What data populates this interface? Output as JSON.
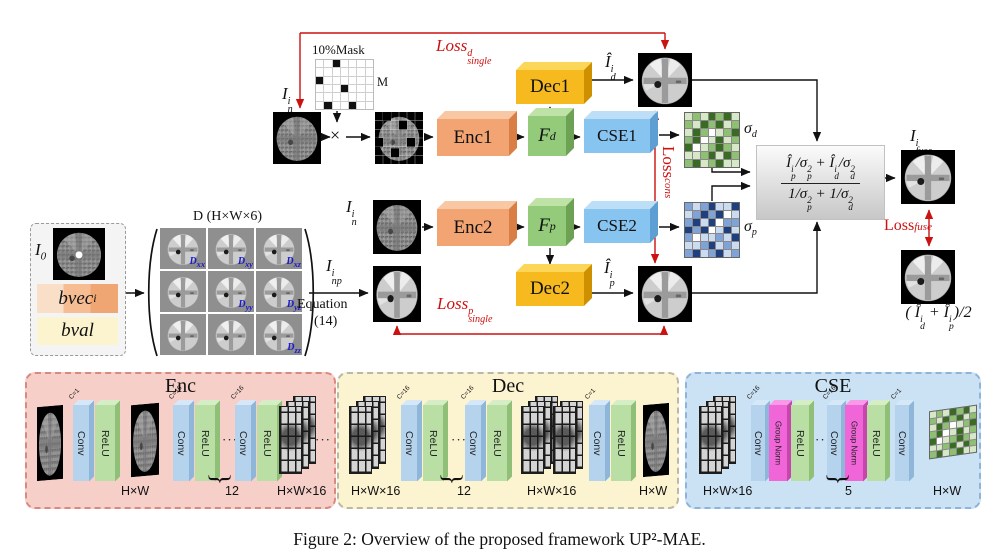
{
  "caption": "Figure 2: Overview of the proposed framework UP²-MAE.",
  "mask": {
    "label": "10%Mask",
    "m_label": "M",
    "grid": {
      "rows": 6,
      "cols": 7,
      "black": [
        [
          0,
          2
        ],
        [
          2,
          0
        ],
        [
          3,
          3
        ],
        [
          5,
          1
        ],
        [
          5,
          4
        ]
      ]
    }
  },
  "math": {
    "times": "×",
    "plus": "+",
    "slash": "/",
    "one": "1",
    "lparen": "(",
    "rparen_div2": ")/2",
    "I_n": {
      "b": "I",
      "sup": "i",
      "sub": "n"
    },
    "I_np": {
      "b": "I",
      "sup": "i",
      "sub": "np"
    },
    "I_0": {
      "b": "I",
      "sub": "0"
    },
    "Ihat_d": {
      "b": "Î",
      "sup": "i",
      "sub": "d"
    },
    "Ihat_p": {
      "b": "Î",
      "sup": "i",
      "sub": "p"
    },
    "I_fuse": {
      "b": "I",
      "sup": "i",
      "sub": "fuse"
    },
    "F_d": {
      "b": "F",
      "sub": "d"
    },
    "F_p": {
      "b": "F",
      "sub": "p"
    },
    "sigma_d": {
      "b": "σ",
      "sub": "d"
    },
    "sigma_p": {
      "b": "σ",
      "sub": "p"
    },
    "sigma_p2": {
      "b": "σ",
      "sup": "2",
      "sub": "p"
    },
    "sigma_d2": {
      "b": "σ",
      "sup": "2",
      "sub": "d"
    }
  },
  "losses": {
    "single_d": {
      "b": "Loss",
      "sup": "d",
      "sub": "single"
    },
    "single_p": {
      "b": "Loss",
      "sup": "p",
      "sub": "single"
    },
    "cons": {
      "b": "Loss",
      "sub": "cons"
    },
    "fuse": {
      "b": "Loss",
      "sub": "fuse"
    }
  },
  "blocks": {
    "enc1": "Enc1",
    "enc2": "Enc2",
    "dec1": "Dec1",
    "dec2": "Dec2",
    "cse1": "CSE1",
    "cse2": "CSE2"
  },
  "d_grid": {
    "title": "D (H×W×6)",
    "equation1": "Equation",
    "equation2": "(14)",
    "labels": [
      {
        "b": "D",
        "sub": "xx"
      },
      {
        "b": "D",
        "sub": "xy"
      },
      {
        "b": "D",
        "sub": "xz"
      },
      {
        "b": "D",
        "sub": "yy"
      },
      {
        "b": "D",
        "sub": "yz"
      },
      {
        "b": "D",
        "sub": "zz"
      }
    ]
  },
  "inputs": {
    "bvec": {
      "b": "bvec",
      "sub": "i"
    },
    "bval": "bval"
  },
  "matrices": {
    "sigma_d": {
      "palette": [
        "#ffffff",
        "#d7e8c8",
        "#8fbf72",
        "#3a6b22"
      ],
      "cells": [
        [
          1,
          2,
          1,
          3,
          2,
          3,
          1
        ],
        [
          2,
          1,
          3,
          2,
          3,
          1,
          2
        ],
        [
          1,
          3,
          2,
          0,
          1,
          2,
          3
        ],
        [
          2,
          3,
          0,
          1,
          3,
          1,
          2
        ],
        [
          3,
          0,
          1,
          2,
          3,
          2,
          1
        ],
        [
          1,
          1,
          2,
          3,
          1,
          3,
          2
        ],
        [
          2,
          3,
          1,
          2,
          3,
          1,
          1
        ]
      ]
    },
    "sigma_p": {
      "palette": [
        "#ffffff",
        "#ccdcf0",
        "#7fa3d6",
        "#1e3f80"
      ],
      "cells": [
        [
          2,
          1,
          2,
          3,
          1,
          1,
          3
        ],
        [
          1,
          2,
          3,
          2,
          3,
          0,
          1
        ],
        [
          2,
          3,
          1,
          3,
          0,
          2,
          2
        ],
        [
          3,
          2,
          3,
          0,
          1,
          3,
          1
        ],
        [
          2,
          0,
          1,
          1,
          2,
          1,
          3
        ],
        [
          1,
          1,
          2,
          3,
          1,
          2,
          1
        ],
        [
          2,
          3,
          1,
          2,
          3,
          1,
          2
        ]
      ]
    }
  },
  "panels": {
    "enc": {
      "title": "Enc",
      "label_hw": "H×W",
      "label_n": "12",
      "label_out": "H×W×16"
    },
    "dec": {
      "title": "Dec",
      "label_in": "H×W×16",
      "label_n": "12",
      "label_mid": "H×W×16",
      "label_out": "H×W"
    },
    "cse": {
      "title": "CSE",
      "label_in": "H×W×16",
      "label_n": "5",
      "label_out": "H×W"
    },
    "slabs": {
      "conv": "Conv",
      "relu": "ReLU",
      "gn": "Group Norm",
      "c1": "C=1",
      "c16": "C=16"
    },
    "dots": "···"
  },
  "colors": {
    "red": "#cc1111",
    "enc_front": "#f2a473",
    "f_front": "#93cb7a",
    "cse_front": "#88c4f0",
    "dec_front": "#f6ba1e",
    "enc_panel_bg": "#f6cfc9",
    "dec_panel_bg": "#fcf3d0",
    "cse_panel_bg": "#cbe2f5"
  }
}
